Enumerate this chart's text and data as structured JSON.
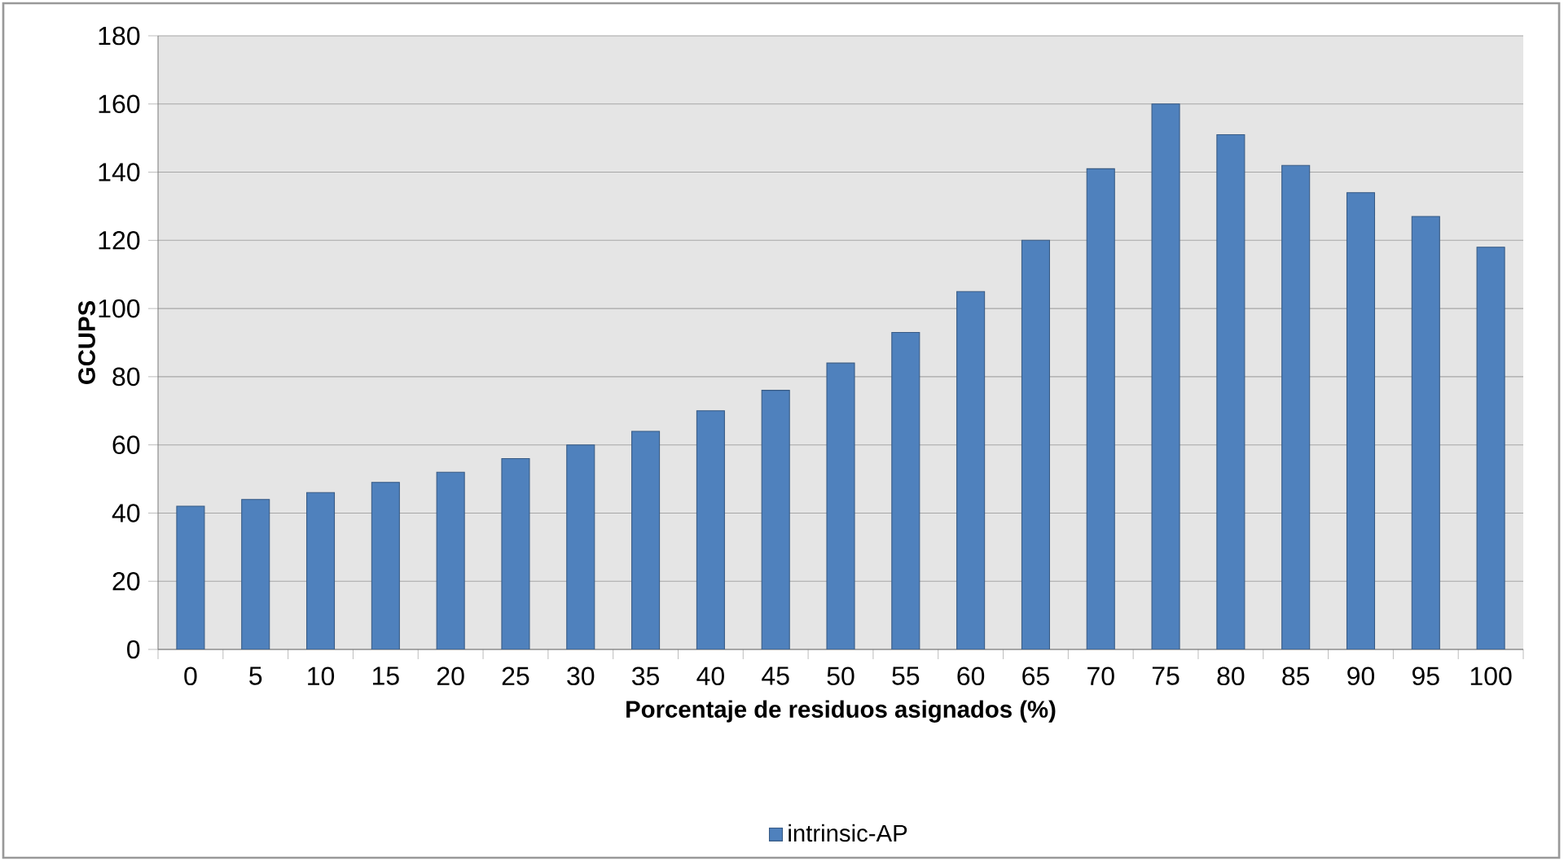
{
  "chart_data": {
    "type": "bar",
    "categories": [
      "0",
      "5",
      "10",
      "15",
      "20",
      "25",
      "30",
      "35",
      "40",
      "45",
      "50",
      "55",
      "60",
      "65",
      "70",
      "75",
      "80",
      "85",
      "90",
      "95",
      "100"
    ],
    "series": [
      {
        "name": "intrinsic-AP",
        "color": "#4f81bd",
        "values": [
          42,
          44,
          46,
          49,
          52,
          56,
          60,
          64,
          70,
          76,
          84,
          93,
          105,
          120,
          141,
          160,
          151,
          142,
          134,
          127,
          118
        ]
      }
    ],
    "xlabel": "Porcentaje de residuos asignados (%)",
    "ylabel": "GCUPS",
    "ylim": [
      0,
      180
    ],
    "yticks": [
      0,
      20,
      40,
      60,
      80,
      100,
      120,
      140,
      160,
      180
    ],
    "grid": "y",
    "legend": "bottom"
  }
}
